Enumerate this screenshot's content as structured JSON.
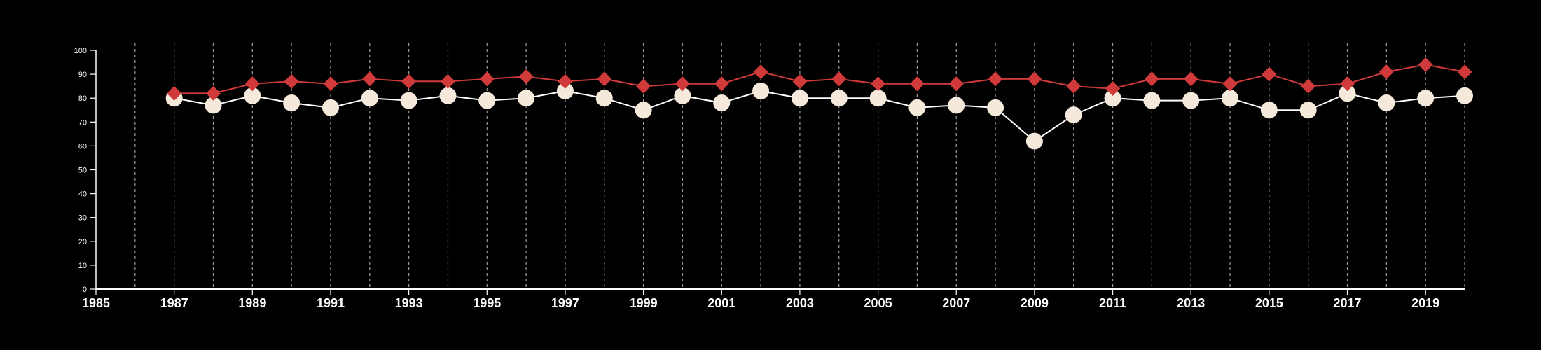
{
  "chart_data": {
    "type": "line",
    "title": "",
    "xlabel": "",
    "ylabel": "",
    "xlim": [
      1985,
      2020
    ],
    "ylim": [
      0,
      100
    ],
    "x_ticks": [
      1985,
      1987,
      1989,
      1991,
      1993,
      1995,
      1997,
      1999,
      2001,
      2003,
      2005,
      2007,
      2009,
      2011,
      2013,
      2015,
      2017,
      2019
    ],
    "y_ticks": [
      0,
      10,
      20,
      30,
      40,
      50,
      60,
      70,
      80,
      90,
      100
    ],
    "vertical_gridlines": "dashed, every year",
    "legend": "none",
    "x": [
      1987,
      1988,
      1989,
      1990,
      1991,
      1992,
      1993,
      1994,
      1995,
      1996,
      1997,
      1998,
      1999,
      2000,
      2001,
      2002,
      2003,
      2004,
      2005,
      2006,
      2007,
      2008,
      2009,
      2010,
      2011,
      2012,
      2013,
      2014,
      2015,
      2016,
      2017,
      2018,
      2019,
      2020
    ],
    "series": [
      {
        "marker": "circle",
        "color": "#f5e9dc",
        "line_color": "#ffffff",
        "values": [
          80,
          77,
          81,
          78,
          76,
          80,
          79,
          81,
          79,
          80,
          83,
          80,
          75,
          81,
          78,
          83,
          80,
          80,
          80,
          76,
          77,
          76,
          62,
          73,
          80,
          79,
          79,
          80,
          75,
          75,
          82,
          78,
          80,
          81
        ]
      },
      {
        "marker": "diamond",
        "color": "#d03a3a",
        "line_color": "#d03a3a",
        "values": [
          82,
          82,
          86,
          87,
          86,
          88,
          87,
          87,
          88,
          89,
          87,
          88,
          85,
          86,
          86,
          91,
          87,
          88,
          86,
          86,
          86,
          88,
          88,
          85,
          84,
          88,
          88,
          86,
          90,
          85,
          86,
          91,
          94,
          91
        ]
      }
    ]
  }
}
